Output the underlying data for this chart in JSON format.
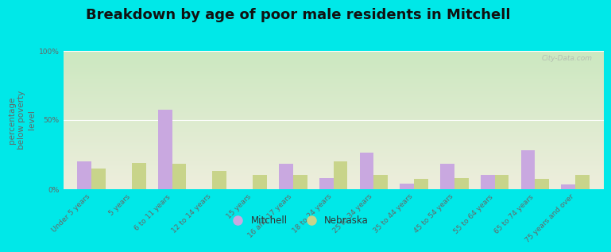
{
  "title": "Breakdown by age of poor male residents in Mitchell",
  "ylabel": "percentage\nbelow poverty\nlevel",
  "categories": [
    "Under 5 years",
    "5 years",
    "6 to 11 years",
    "12 to 14 years",
    "15 years",
    "16 and 17 years",
    "18 to 24 years",
    "25 to 34 years",
    "35 to 44 years",
    "45 to 54 years",
    "55 to 64 years",
    "65 to 74 years",
    "75 years and over"
  ],
  "mitchell_values": [
    20,
    0,
    57,
    0,
    0,
    18,
    8,
    26,
    4,
    18,
    10,
    28,
    3
  ],
  "nebraska_values": [
    15,
    19,
    18,
    13,
    10,
    10,
    20,
    10,
    7,
    8,
    10,
    7,
    10
  ],
  "mitchell_color": "#c9a8e0",
  "nebraska_color": "#c8d48a",
  "plot_bg_top": "#cce8c0",
  "plot_bg_bottom": "#eeeedd",
  "outer_bg": "#00e8e8",
  "ylim": [
    0,
    100
  ],
  "yticks": [
    0,
    50,
    100
  ],
  "ytick_labels": [
    "0%",
    "50%",
    "100%"
  ],
  "bar_width": 0.35,
  "title_fontsize": 13,
  "axis_label_fontsize": 7.5,
  "tick_fontsize": 6.5,
  "legend_fontsize": 8.5,
  "watermark": "City-Data.com"
}
